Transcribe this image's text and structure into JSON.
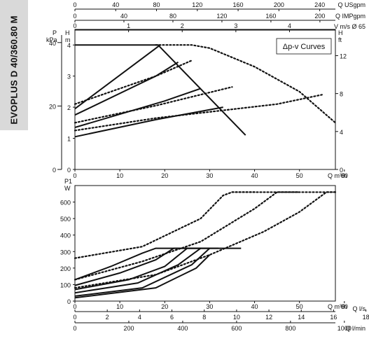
{
  "model_label": "EVOPLUS D 40/360.80 M",
  "legend_box": "Δp-v Curves",
  "chart_data": [
    {
      "type": "line",
      "name_role": "head-curves",
      "top_axes": [
        {
          "label": "Q USgpm",
          "ticks": [
            "0",
            "40",
            "80",
            "120",
            "160",
            "200",
            "240"
          ]
        },
        {
          "label": "Q IMPgpm",
          "ticks": [
            "0",
            "40",
            "80",
            "120",
            "160",
            "200"
          ]
        },
        {
          "label": "V m/s Ø 65",
          "ticks": [
            "0",
            "1",
            "2",
            "3",
            "4"
          ]
        }
      ],
      "left_axes": [
        {
          "label": "P",
          "unit": "kPa",
          "ticks": [
            "0",
            "20",
            "40"
          ]
        },
        {
          "label": "H",
          "unit": "m",
          "ticks": [
            "0",
            "1",
            "2",
            "3",
            "4"
          ]
        }
      ],
      "right_axis": {
        "label": "H",
        "unit": "ft",
        "ticks": [
          "0",
          "4",
          "8",
          "12"
        ]
      },
      "x_axis": {
        "label": "Q m³/h",
        "ticks": [
          "0",
          "10",
          "20",
          "30",
          "40",
          "50",
          "60"
        ],
        "range": [
          0,
          58
        ]
      },
      "y_range": [
        0,
        4.5
      ],
      "series": [
        {
          "style": "solid",
          "points": [
            [
              0,
              4.0
            ],
            [
              15.5,
              4.0
            ],
            [
              18.5,
              4.0
            ],
            [
              38,
              1.1
            ]
          ]
        },
        {
          "style": "solid",
          "points": [
            [
              0,
              1.95
            ],
            [
              19,
              4.0
            ]
          ]
        },
        {
          "style": "solid",
          "points": [
            [
              0,
              1.75
            ],
            [
              18,
              3.0
            ],
            [
              23,
              3.45
            ]
          ]
        },
        {
          "style": "solid",
          "points": [
            [
              0,
              1.35
            ],
            [
              20,
              2.2
            ],
            [
              28,
              2.6
            ]
          ]
        },
        {
          "style": "solid",
          "points": [
            [
              0,
              1.05
            ],
            [
              18,
              1.6
            ],
            [
              33,
              2.0
            ]
          ]
        },
        {
          "style": "dotted",
          "points": [
            [
              0,
              2.1
            ],
            [
              18,
              3.0
            ],
            [
              26,
              3.5
            ]
          ]
        },
        {
          "style": "dotted",
          "points": [
            [
              0,
              1.5
            ],
            [
              18,
              2.05
            ],
            [
              35,
              2.65
            ]
          ]
        },
        {
          "style": "dotted",
          "points": [
            [
              0,
              1.25
            ],
            [
              18,
              1.65
            ],
            [
              45,
              2.1
            ],
            [
              55,
              2.4
            ]
          ]
        },
        {
          "style": "dotted",
          "points": [
            [
              18,
              4.0
            ],
            [
              26,
              4.0
            ],
            [
              30,
              3.9
            ],
            [
              40,
              3.3
            ],
            [
              50,
              2.5
            ],
            [
              58,
              1.5
            ]
          ]
        }
      ]
    },
    {
      "type": "line",
      "name_role": "power-curves",
      "y_axis": {
        "label": "P1",
        "unit": "W",
        "ticks": [
          "0",
          "100",
          "200",
          "300",
          "400",
          "500",
          "600"
        ],
        "range": [
          0,
          700
        ]
      },
      "x_axis": {
        "label": "Q m³/h",
        "ticks": [
          "0",
          "10",
          "20",
          "30",
          "40",
          "50",
          "60"
        ],
        "range": [
          0,
          58
        ]
      },
      "bottom_axes": [
        {
          "label": "Q l/s",
          "ticks": [
            "0",
            "2",
            "4",
            "6",
            "8",
            "10",
            "12",
            "14",
            "16",
            "18"
          ]
        },
        {
          "label": "Q l/min",
          "ticks": [
            "0",
            "200",
            "400",
            "600",
            "800",
            "1000"
          ]
        }
      ],
      "series": [
        {
          "style": "solid",
          "points": [
            [
              0,
              130
            ],
            [
              8,
              210
            ],
            [
              15,
              290
            ],
            [
              18,
              320
            ],
            [
              37,
              320
            ]
          ]
        },
        {
          "style": "solid",
          "points": [
            [
              0,
              95
            ],
            [
              10,
              170
            ],
            [
              18,
              250
            ],
            [
              22,
              320
            ],
            [
              32,
              320
            ]
          ]
        },
        {
          "style": "solid",
          "points": [
            [
              0,
              70
            ],
            [
              12,
              130
            ],
            [
              20,
              210
            ],
            [
              25,
              320
            ],
            [
              30,
              320
            ]
          ]
        },
        {
          "style": "solid",
          "points": [
            [
              0,
              50
            ],
            [
              14,
              110
            ],
            [
              23,
              220
            ],
            [
              28,
              320
            ]
          ]
        },
        {
          "style": "solid",
          "points": [
            [
              0,
              30
            ],
            [
              15,
              80
            ],
            [
              26,
              220
            ],
            [
              30,
              320
            ]
          ]
        },
        {
          "style": "solid",
          "points": [
            [
              0,
              20
            ],
            [
              18,
              80
            ],
            [
              27,
              200
            ],
            [
              30,
              280
            ]
          ]
        },
        {
          "style": "dotted",
          "points": [
            [
              0,
              260
            ],
            [
              15,
              330
            ],
            [
              28,
              500
            ],
            [
              33,
              640
            ],
            [
              35,
              660
            ],
            [
              40,
              660
            ]
          ]
        },
        {
          "style": "dotted",
          "points": [
            [
              0,
              130
            ],
            [
              15,
              240
            ],
            [
              28,
              360
            ],
            [
              40,
              560
            ],
            [
              45,
              660
            ],
            [
              50,
              660
            ]
          ]
        },
        {
          "style": "dotted",
          "points": [
            [
              0,
              80
            ],
            [
              18,
              160
            ],
            [
              30,
              280
            ],
            [
              42,
              420
            ],
            [
              50,
              540
            ],
            [
              56,
              660
            ],
            [
              58,
              660
            ]
          ]
        }
      ],
      "flat_tail": {
        "style": "dotted",
        "y": 660,
        "x_range": [
          35,
          58
        ]
      }
    }
  ]
}
